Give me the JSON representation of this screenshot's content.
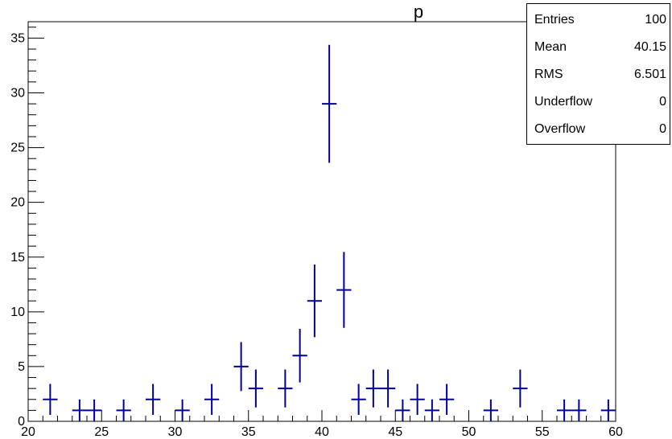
{
  "chart_data": {
    "type": "histogram",
    "title": "p",
    "xlabel": "",
    "ylabel": "",
    "xlim": [
      20,
      60
    ],
    "ylim": [
      0,
      36.5
    ],
    "x_ticks": [
      "20",
      "25",
      "30",
      "35",
      "40",
      "45",
      "50",
      "55",
      "60"
    ],
    "y_ticks": [
      "0",
      "5",
      "10",
      "15",
      "20",
      "25",
      "30",
      "35"
    ],
    "bin_width": 1,
    "grid": false,
    "series": [
      {
        "color": "#000099",
        "x": [
          21.5,
          23.5,
          24.5,
          26.5,
          28.5,
          30.5,
          32.5,
          34.5,
          35.5,
          37.5,
          38.5,
          39.5,
          40.5,
          41.5,
          42.5,
          43.5,
          44.5,
          45.5,
          46.5,
          47.5,
          48.5,
          51.5,
          53.5,
          56.5,
          57.5,
          59.5
        ],
        "values": [
          2,
          1,
          1,
          1,
          2,
          1,
          2,
          5,
          3,
          3,
          6,
          11,
          29,
          12,
          2,
          3,
          3,
          1,
          2,
          1,
          2,
          1,
          3,
          1,
          1,
          1
        ]
      }
    ]
  },
  "stats_box": {
    "rows": [
      {
        "label": "Entries",
        "value": "100"
      },
      {
        "label": "Mean",
        "value": "40.15"
      },
      {
        "label": "RMS",
        "value": "6.501"
      },
      {
        "label": "Underflow",
        "value": "0"
      },
      {
        "label": "Overflow",
        "value": "0"
      }
    ]
  }
}
